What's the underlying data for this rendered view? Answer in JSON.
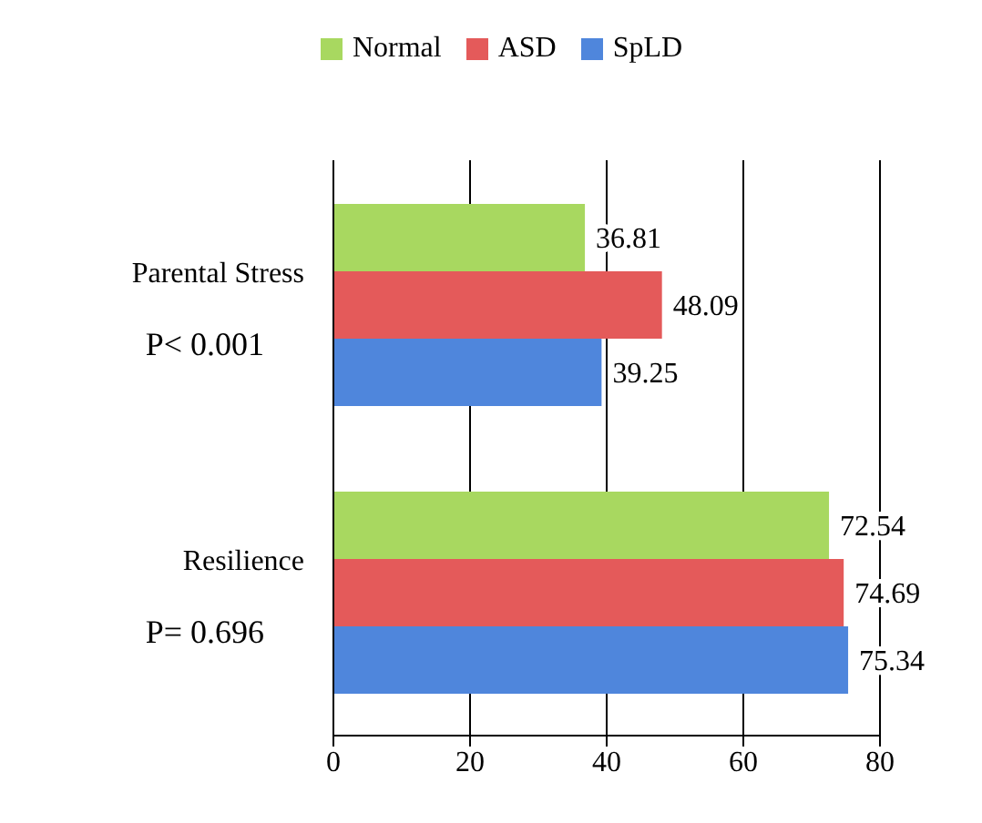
{
  "chart_data": {
    "type": "bar",
    "orientation": "horizontal",
    "categories": [
      "Parental Stress",
      "Resilience"
    ],
    "series": [
      {
        "name": "Normal",
        "color": "#a8d860",
        "values": [
          36.81,
          72.54
        ]
      },
      {
        "name": "ASD",
        "color": "#e45a5a",
        "values": [
          48.09,
          74.69
        ]
      },
      {
        "name": "SpLD",
        "color": "#4f86dc",
        "values": [
          39.25,
          75.34
        ]
      }
    ],
    "xlim": [
      0,
      80
    ],
    "xticks": [
      0,
      20,
      40,
      60,
      80
    ],
    "grid": "x",
    "legend": "top",
    "data_labels": true,
    "annotations": [
      "P< 0.001",
      "P= 0.696"
    ]
  }
}
